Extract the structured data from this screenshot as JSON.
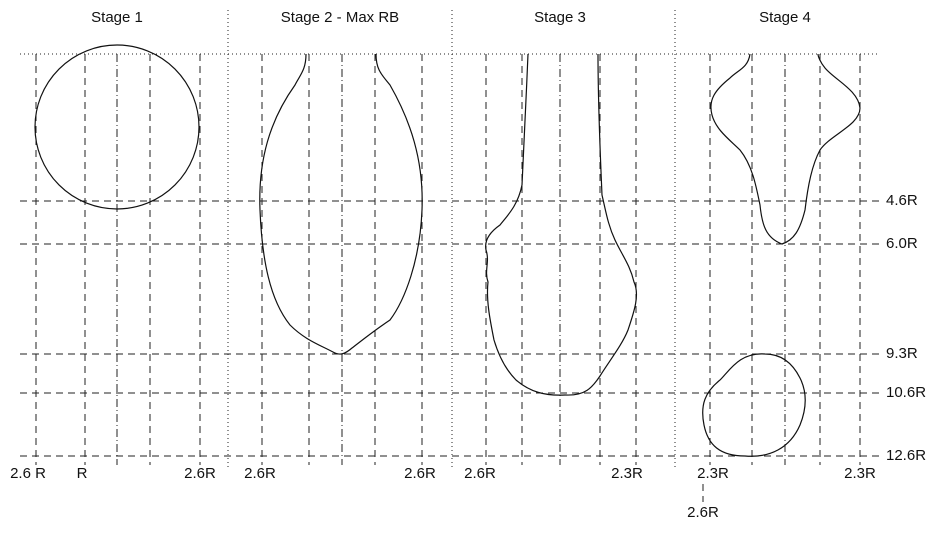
{
  "stages": [
    {
      "title": "Stage 1",
      "width_labels": [
        "2.6 R",
        "R",
        "2.6R"
      ]
    },
    {
      "title": "Stage 2 - Max RB",
      "width_labels": [
        "2.6R",
        "2.6R"
      ]
    },
    {
      "title": "Stage 3",
      "width_labels": [
        "2.6R",
        "2.3R"
      ]
    },
    {
      "title": "Stage 4",
      "width_labels": [
        "2.3R",
        "2.3R",
        "2.6R"
      ]
    }
  ],
  "levels": [
    "4.6R",
    "6.0R",
    "9.3R",
    "10.6R",
    "12.6R"
  ]
}
